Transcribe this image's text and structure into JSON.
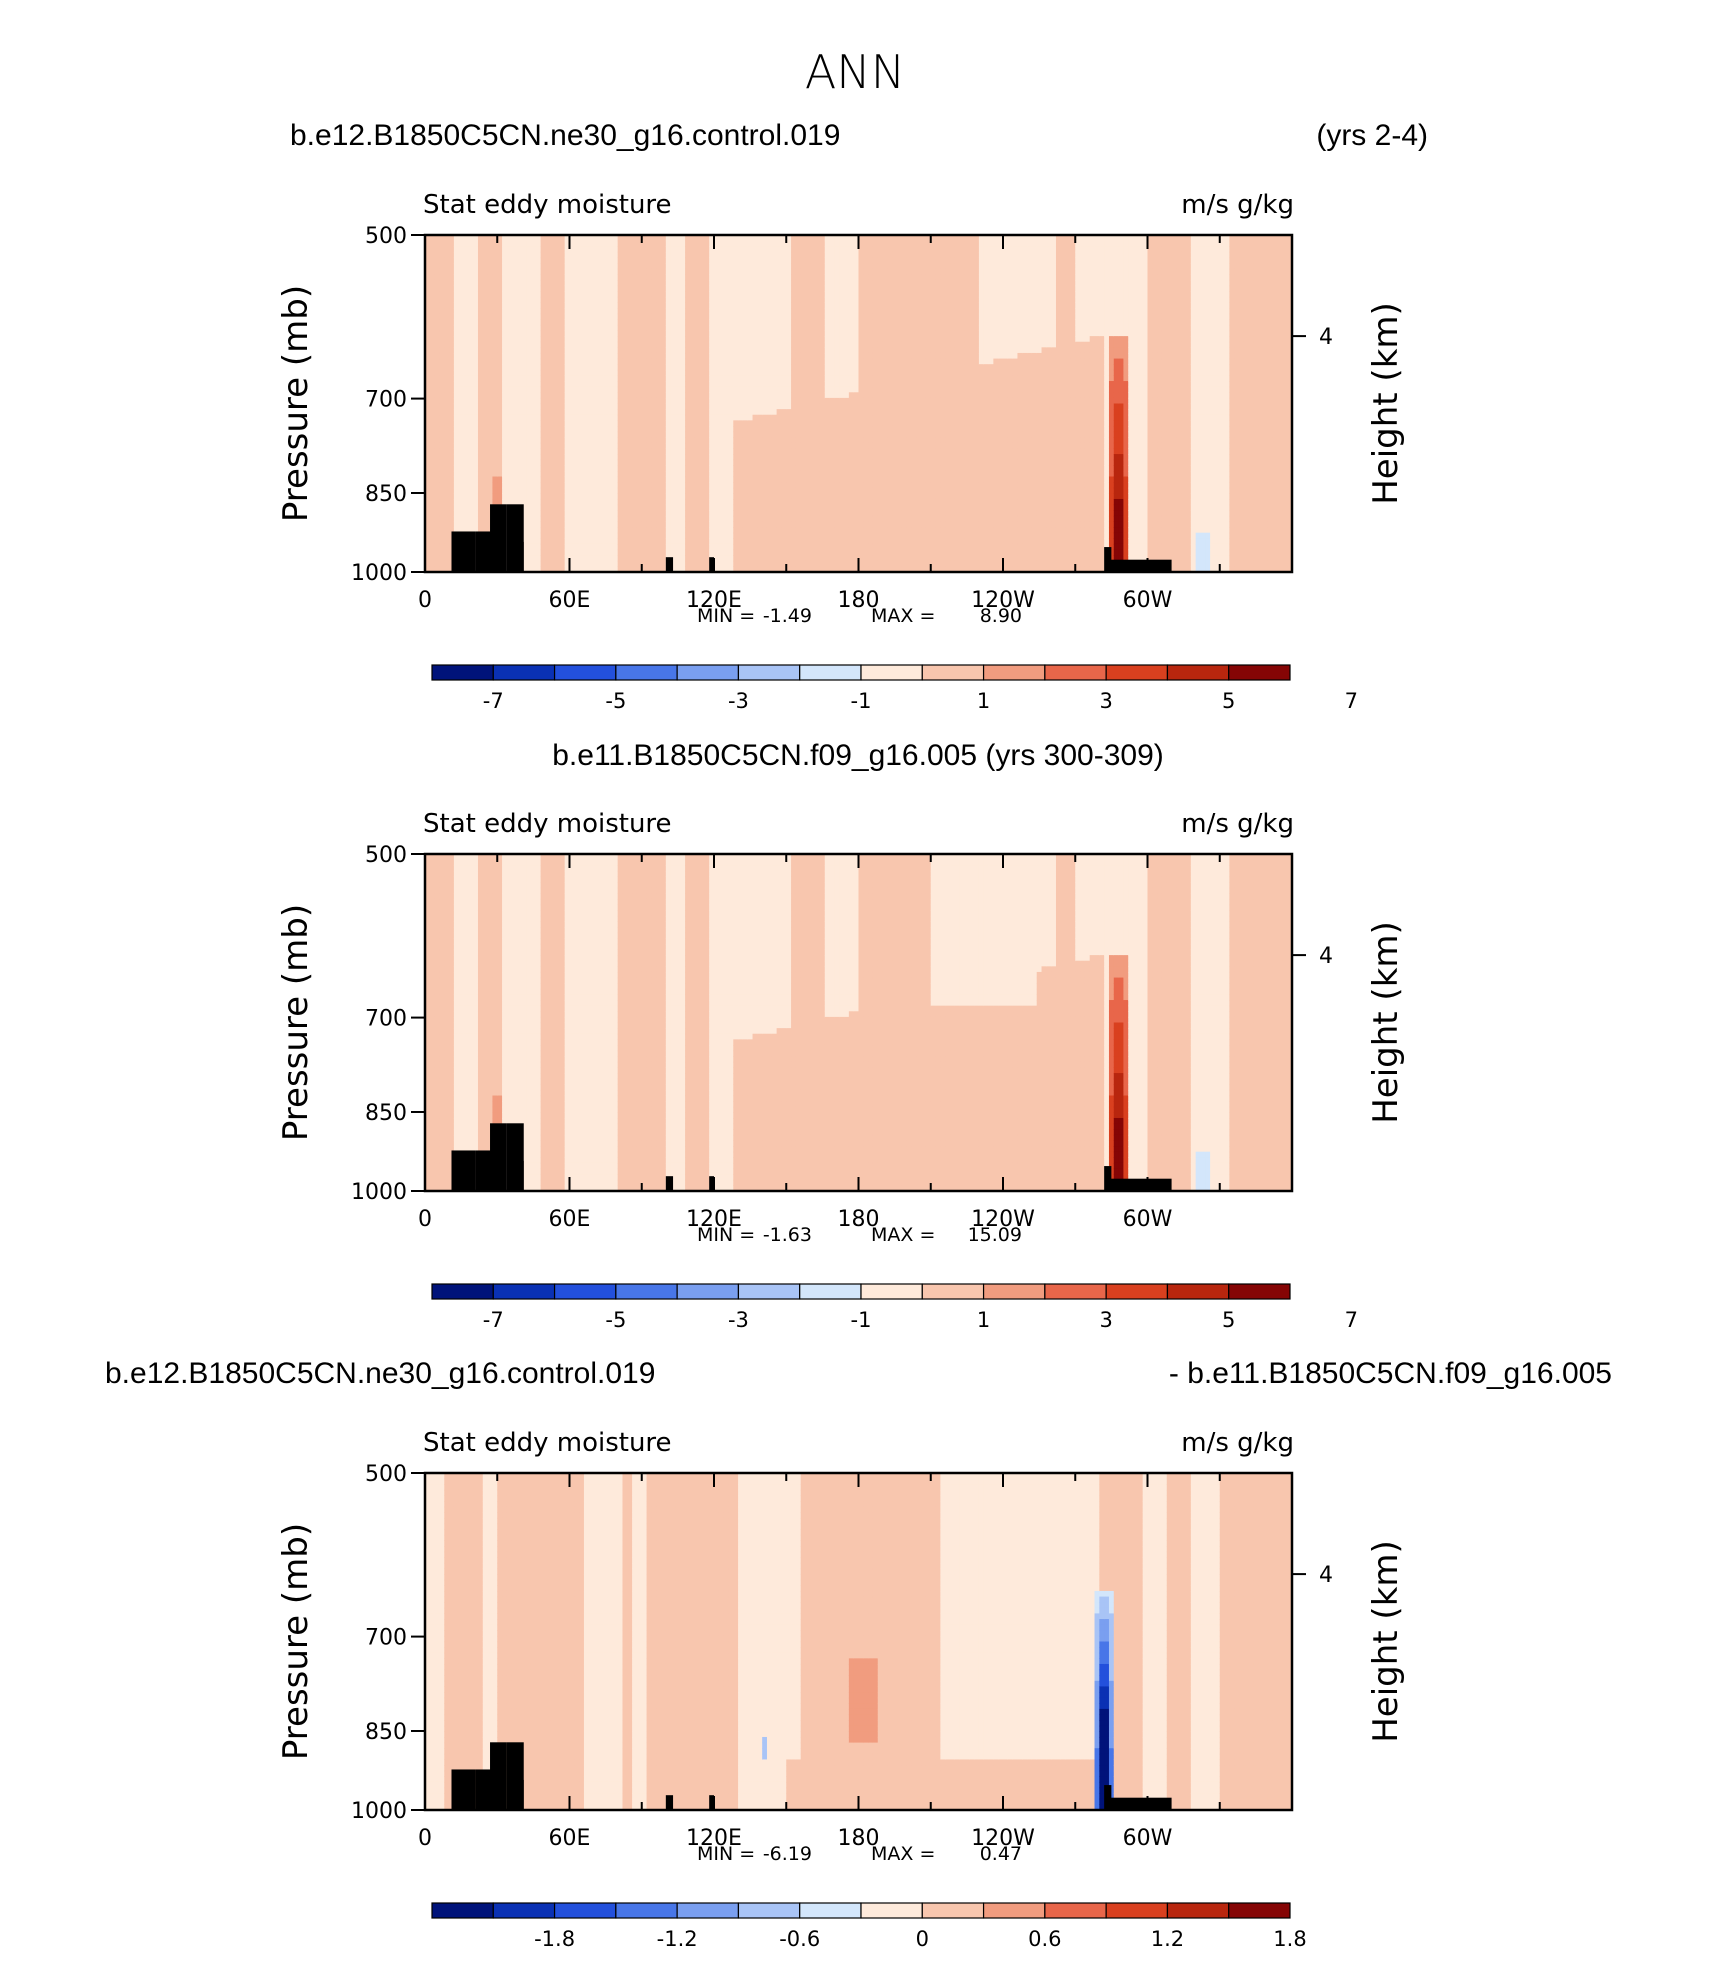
{
  "page": {
    "title": "ANN"
  },
  "panels": [
    {
      "id": "panel-1",
      "header_left": "b.e12.B1850C5CN.ne30_g16.control.019",
      "header_center": "",
      "header_right": "(yrs 2-4)",
      "left_string": "Stat eddy moisture",
      "right_string": "m/s g/kg",
      "stats": {
        "min_label": "MIN =",
        "min": "-1.49",
        "max_label": "MAX =",
        "max": "8.90"
      },
      "colorbar": {
        "labels": [
          "-7",
          "-5",
          "-3",
          "-1",
          "1",
          "3",
          "5",
          "7"
        ]
      },
      "mode": "model"
    },
    {
      "id": "panel-2",
      "header_left": "",
      "header_center": "b.e11.B1850C5CN.f09_g16.005 (yrs 300-309)",
      "header_right": "",
      "left_string": "Stat eddy moisture",
      "right_string": "m/s g/kg",
      "stats": {
        "min_label": "MIN =",
        "min": "-1.63",
        "max_label": "MAX =",
        "max": "15.09"
      },
      "colorbar": {
        "labels": [
          "-7",
          "-5",
          "-3",
          "-1",
          "1",
          "3",
          "5",
          "7"
        ]
      },
      "mode": "model"
    },
    {
      "id": "panel-3",
      "header_left": "b.e12.B1850C5CN.ne30_g16.control.019",
      "header_center": "",
      "header_right": "- b.e11.B1850C5CN.f09_g16.005",
      "left_string": "Stat eddy moisture",
      "right_string": "m/s g/kg",
      "stats": {
        "min_label": "MIN =",
        "min": "-6.19",
        "max_label": "MAX =",
        "max": "0.47"
      },
      "colorbar": {
        "labels": [
          "-1.8",
          "-1.2",
          "-0.6",
          "0",
          "0.6",
          "1.2",
          "1.8"
        ]
      },
      "mode": "diff"
    }
  ],
  "colors": {
    "palette": [
      "#00137a",
      "#0a31b4",
      "#2350dc",
      "#4876e8",
      "#7a9ff0",
      "#a9c4f6",
      "#d3e6fb",
      "#feeadb",
      "#f8c6ae",
      "#f19c7f",
      "#e8664a",
      "#d9401f",
      "#b8260e",
      "#850505"
    ],
    "topography": "#000000"
  },
  "chart_data": [
    {
      "type": "heatmap",
      "title": "Stat eddy moisture",
      "units": "m/s g/kg",
      "xlabel": "",
      "ylabel": "Pressure (mb)",
      "y2label": "Height (km)",
      "x_ticklabels": [
        "0",
        "60E",
        "120E",
        "180",
        "120W",
        "60W"
      ],
      "x_range": [
        0,
        360
      ],
      "y_ticklabels": [
        "500",
        "700",
        "850",
        "1000"
      ],
      "y_range_mb": [
        1000,
        500
      ],
      "y2_ticklabels": [
        "4"
      ],
      "contour_levels": [
        -7,
        -6,
        -5,
        -4,
        -3,
        -2,
        -1,
        0,
        1,
        2,
        3,
        4,
        5,
        6,
        7
      ],
      "min": -1.49,
      "max": 8.9
    },
    {
      "type": "heatmap",
      "title": "Stat eddy moisture",
      "units": "m/s g/kg",
      "xlabel": "",
      "ylabel": "Pressure (mb)",
      "y2label": "Height (km)",
      "x_ticklabels": [
        "0",
        "60E",
        "120E",
        "180",
        "120W",
        "60W"
      ],
      "x_range": [
        0,
        360
      ],
      "y_ticklabels": [
        "500",
        "700",
        "850",
        "1000"
      ],
      "y_range_mb": [
        1000,
        500
      ],
      "y2_ticklabels": [
        "4"
      ],
      "contour_levels": [
        -7,
        -6,
        -5,
        -4,
        -3,
        -2,
        -1,
        0,
        1,
        2,
        3,
        4,
        5,
        6,
        7
      ],
      "min": -1.63,
      "max": 15.09
    },
    {
      "type": "heatmap",
      "title": "Stat eddy moisture",
      "units": "m/s g/kg",
      "xlabel": "",
      "ylabel": "Pressure (mb)",
      "y2label": "Height (km)",
      "x_ticklabels": [
        "0",
        "60E",
        "120E",
        "180",
        "120W",
        "60W"
      ],
      "x_range": [
        0,
        360
      ],
      "y_ticklabels": [
        "500",
        "700",
        "850",
        "1000"
      ],
      "y_range_mb": [
        1000,
        500
      ],
      "y2_ticklabels": [
        "4"
      ],
      "contour_levels": [
        -2.1,
        -1.8,
        -1.5,
        -1.2,
        -0.9,
        -0.6,
        -0.3,
        0,
        0.3,
        0.6,
        0.9,
        1.2,
        1.5,
        1.8,
        2.1
      ],
      "min": -6.19,
      "max": 0.47
    }
  ]
}
